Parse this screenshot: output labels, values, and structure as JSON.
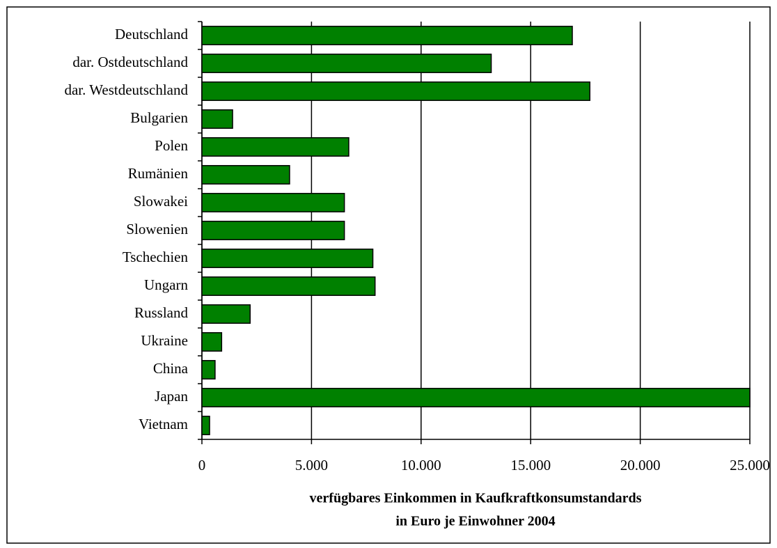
{
  "chart_data": {
    "type": "bar",
    "orientation": "horizontal",
    "categories": [
      "Deutschland",
      "dar. Ostdeutschland",
      "dar. Westdeutschland",
      "Bulgarien",
      "Polen",
      "Rumänien",
      "Slowakei",
      "Slowenien",
      "Tschechien",
      "Ungarn",
      "Russland",
      "Ukraine",
      "China",
      "Japan",
      "Vietnam"
    ],
    "values": [
      16900,
      13200,
      17700,
      1400,
      6700,
      4000,
      6500,
      6500,
      7800,
      7900,
      2200,
      900,
      600,
      25000,
      350
    ],
    "color": "#008000",
    "xlim": [
      0,
      25000
    ],
    "xticks": [
      0,
      {
        "value": 5000,
        "label": "5.000"
      },
      {
        "value": 10000,
        "label": "10.000"
      },
      {
        "value": 15000,
        "label": "15.000"
      },
      {
        "value": 20000,
        "label": "20.000"
      },
      {
        "value": 25000,
        "label": "25.000"
      }
    ],
    "xlabel": [
      "verfügbares Einkommen in Kaufkraftkonsumstandards",
      "in Euro je Einwohner 2004"
    ],
    "grid": true
  }
}
